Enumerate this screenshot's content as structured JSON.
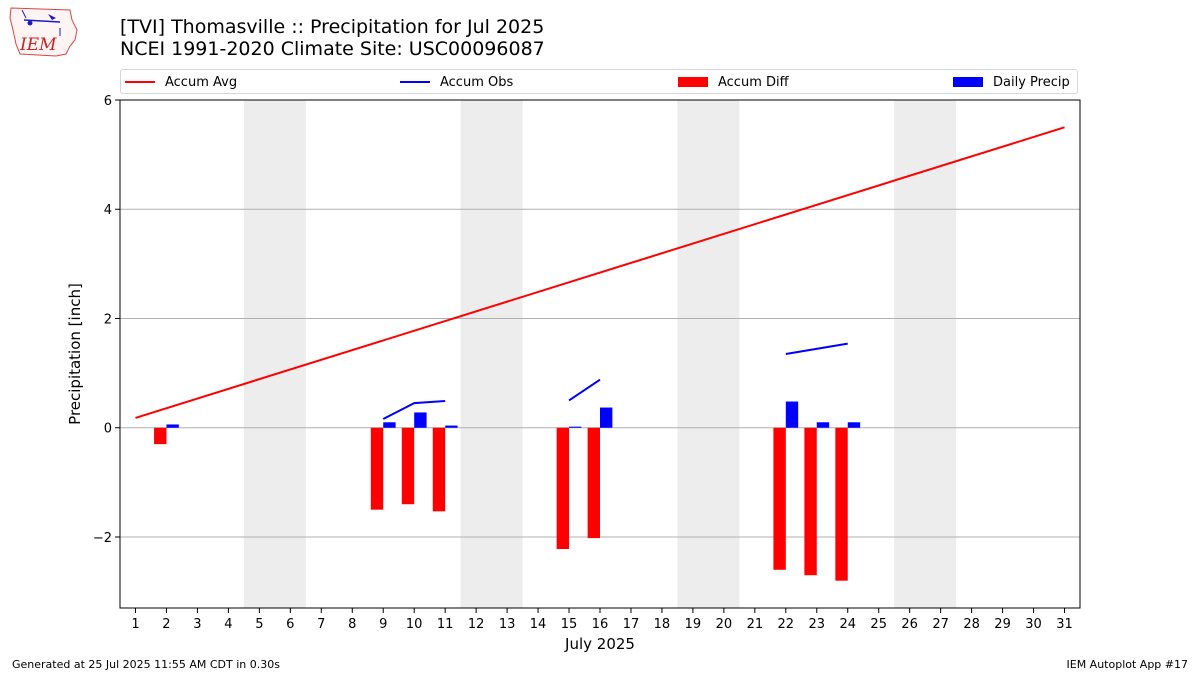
{
  "header": {
    "title_line1": "[TVI] Thomasville :: Precipitation for Jul 2025",
    "title_line2": "NCEI 1991-2020 Climate Site: USC00096087",
    "logo_text": "IEM"
  },
  "footer": {
    "left": "Generated at 25 Jul 2025 11:55 AM CDT in 0.30s",
    "right": "IEM Autoplot App #17"
  },
  "colors": {
    "accum_avg": "#ff0000",
    "accum_obs": "#0000ff",
    "accum_diff": "#ff0000",
    "daily_precip": "#0000ff",
    "weekend_shade": "#ededed",
    "grid": "#b0b0b0"
  },
  "chart_data": {
    "type": "bar",
    "xlabel": "July 2025",
    "ylabel": "Precipitation [inch]",
    "xlim": [
      0.5,
      31.5
    ],
    "ylim": [
      -3.3,
      6.0
    ],
    "yticks": [
      -2,
      0,
      2,
      4,
      6
    ],
    "ytick_labels": [
      "−2",
      "0",
      "2",
      "4",
      "6"
    ],
    "xticks": [
      1,
      2,
      3,
      4,
      5,
      6,
      7,
      8,
      9,
      10,
      11,
      12,
      13,
      14,
      15,
      16,
      17,
      18,
      19,
      20,
      21,
      22,
      23,
      24,
      25,
      26,
      27,
      28,
      29,
      30,
      31
    ],
    "grid": "horizontal",
    "legend_position": "top",
    "weekend_shading": [
      [
        4.5,
        6.5
      ],
      [
        11.5,
        13.5
      ],
      [
        18.5,
        20.5
      ],
      [
        25.5,
        27.5
      ]
    ],
    "legend": [
      {
        "label": "Accum Avg",
        "kind": "line",
        "color": "#ff0000"
      },
      {
        "label": "Accum Obs",
        "kind": "line",
        "color": "#0000ff"
      },
      {
        "label": "Accum Diff",
        "kind": "patch",
        "color": "#ff0000"
      },
      {
        "label": "Daily Precip",
        "kind": "patch",
        "color": "#0000ff"
      }
    ],
    "series": [
      {
        "name": "Accum Avg",
        "type": "line",
        "x": [
          1,
          31
        ],
        "values": [
          0.18,
          5.5
        ]
      },
      {
        "name": "Accum Obs",
        "type": "line",
        "segments": [
          {
            "x": [
              9,
              10,
              11
            ],
            "values": [
              0.16,
              0.45,
              0.49
            ]
          },
          {
            "x": [
              15,
              16
            ],
            "values": [
              0.5,
              0.88
            ]
          },
          {
            "x": [
              22,
              24
            ],
            "values": [
              1.35,
              1.54
            ]
          }
        ]
      },
      {
        "name": "Accum Diff",
        "type": "bar",
        "x": [
          2,
          9,
          10,
          11,
          15,
          16,
          22,
          23,
          24
        ],
        "values": [
          -0.3,
          -1.5,
          -1.4,
          -1.53,
          -2.22,
          -2.02,
          -2.6,
          -2.7,
          -2.8
        ]
      },
      {
        "name": "Daily Precip",
        "type": "bar",
        "x": [
          2,
          9,
          10,
          11,
          15,
          16,
          22,
          23,
          24
        ],
        "values": [
          0.06,
          0.1,
          0.28,
          0.04,
          0.02,
          0.37,
          0.48,
          0.1,
          0.1
        ]
      }
    ]
  }
}
